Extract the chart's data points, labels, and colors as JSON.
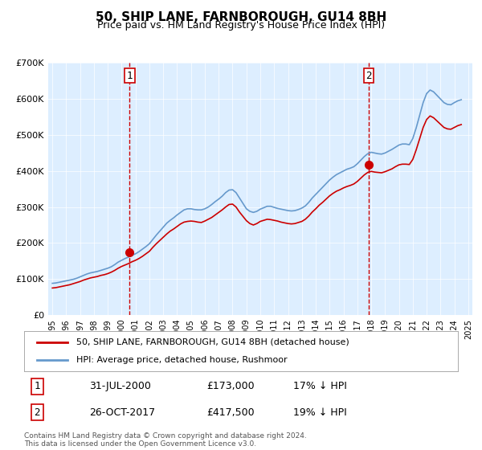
{
  "title": "50, SHIP LANE, FARNBOROUGH, GU14 8BH",
  "subtitle": "Price paid vs. HM Land Registry's House Price Index (HPI)",
  "legend_line1": "50, SHIP LANE, FARNBOROUGH, GU14 8BH (detached house)",
  "legend_line2": "HPI: Average price, detached house, Rushmoor",
  "annotation1_label": "1",
  "annotation1_date": "31-JUL-2000",
  "annotation1_price": "£173,000",
  "annotation1_hpi": "17% ↓ HPI",
  "annotation2_label": "2",
  "annotation2_date": "26-OCT-2017",
  "annotation2_price": "£417,500",
  "annotation2_hpi": "19% ↓ HPI",
  "footnote1": "Contains HM Land Registry data © Crown copyright and database right 2024.",
  "footnote2": "This data is licensed under the Open Government Licence v3.0.",
  "red_color": "#cc0000",
  "blue_color": "#6699cc",
  "bg_color": "#ddeeff",
  "plot_bg": "#ddeeff",
  "annotation_line_color": "#cc0000",
  "ylim": [
    0,
    700000
  ],
  "yticks": [
    0,
    100000,
    200000,
    300000,
    400000,
    500000,
    600000,
    700000
  ],
  "ytick_labels": [
    "£0",
    "£100K",
    "£200K",
    "£300K",
    "£400K",
    "£500K",
    "£600K",
    "£700K"
  ],
  "sale1_year": 2000.58,
  "sale1_value": 173000,
  "sale2_year": 2017.82,
  "sale2_value": 417500,
  "hpi_years": [
    1995,
    1995.25,
    1995.5,
    1995.75,
    1996,
    1996.25,
    1996.5,
    1996.75,
    1997,
    1997.25,
    1997.5,
    1997.75,
    1998,
    1998.25,
    1998.5,
    1998.75,
    1999,
    1999.25,
    1999.5,
    1999.75,
    2000,
    2000.25,
    2000.5,
    2000.75,
    2001,
    2001.25,
    2001.5,
    2001.75,
    2002,
    2002.25,
    2002.5,
    2002.75,
    2003,
    2003.25,
    2003.5,
    2003.75,
    2004,
    2004.25,
    2004.5,
    2004.75,
    2005,
    2005.25,
    2005.5,
    2005.75,
    2006,
    2006.25,
    2006.5,
    2006.75,
    2007,
    2007.25,
    2007.5,
    2007.75,
    2008,
    2008.25,
    2008.5,
    2008.75,
    2009,
    2009.25,
    2009.5,
    2009.75,
    2010,
    2010.25,
    2010.5,
    2010.75,
    2011,
    2011.25,
    2011.5,
    2011.75,
    2012,
    2012.25,
    2012.5,
    2012.75,
    2013,
    2013.25,
    2013.5,
    2013.75,
    2014,
    2014.25,
    2014.5,
    2014.75,
    2015,
    2015.25,
    2015.5,
    2015.75,
    2016,
    2016.25,
    2016.5,
    2016.75,
    2017,
    2017.25,
    2017.5,
    2017.75,
    2018,
    2018.25,
    2018.5,
    2018.75,
    2019,
    2019.25,
    2019.5,
    2019.75,
    2020,
    2020.25,
    2020.5,
    2020.75,
    2021,
    2021.25,
    2021.5,
    2021.75,
    2022,
    2022.25,
    2022.5,
    2022.75,
    2023,
    2023.25,
    2023.5,
    2023.75,
    2024,
    2024.25,
    2024.5
  ],
  "hpi_values": [
    88000,
    89000,
    91000,
    93000,
    95000,
    97000,
    99000,
    102000,
    106000,
    110000,
    114000,
    117000,
    119000,
    121000,
    124000,
    127000,
    130000,
    134000,
    140000,
    147000,
    152000,
    157000,
    161000,
    166000,
    170000,
    176000,
    183000,
    190000,
    198000,
    210000,
    222000,
    233000,
    244000,
    255000,
    263000,
    270000,
    278000,
    285000,
    292000,
    295000,
    295000,
    293000,
    292000,
    292000,
    295000,
    300000,
    307000,
    315000,
    322000,
    330000,
    340000,
    347000,
    348000,
    340000,
    325000,
    310000,
    295000,
    288000,
    285000,
    288000,
    294000,
    298000,
    302000,
    302000,
    299000,
    296000,
    294000,
    292000,
    290000,
    289000,
    290000,
    293000,
    297000,
    303000,
    313000,
    325000,
    335000,
    345000,
    355000,
    365000,
    375000,
    383000,
    390000,
    395000,
    400000,
    405000,
    408000,
    412000,
    420000,
    430000,
    440000,
    448000,
    452000,
    450000,
    448000,
    447000,
    450000,
    455000,
    460000,
    466000,
    472000,
    475000,
    475000,
    473000,
    490000,
    520000,
    555000,
    590000,
    615000,
    625000,
    620000,
    610000,
    600000,
    590000,
    585000,
    584000,
    590000,
    595000,
    598000
  ],
  "red_years": [
    1995,
    1995.25,
    1995.5,
    1995.75,
    1996,
    1996.25,
    1996.5,
    1996.75,
    1997,
    1997.25,
    1997.5,
    1997.75,
    1998,
    1998.25,
    1998.5,
    1998.75,
    1999,
    1999.25,
    1999.5,
    1999.75,
    2000,
    2000.25,
    2000.5,
    2000.75,
    2001,
    2001.25,
    2001.5,
    2001.75,
    2002,
    2002.25,
    2002.5,
    2002.75,
    2003,
    2003.25,
    2003.5,
    2003.75,
    2004,
    2004.25,
    2004.5,
    2004.75,
    2005,
    2005.25,
    2005.5,
    2005.75,
    2006,
    2006.25,
    2006.5,
    2006.75,
    2007,
    2007.25,
    2007.5,
    2007.75,
    2008,
    2008.25,
    2008.5,
    2008.75,
    2009,
    2009.25,
    2009.5,
    2009.75,
    2010,
    2010.25,
    2010.5,
    2010.75,
    2011,
    2011.25,
    2011.5,
    2011.75,
    2012,
    2012.25,
    2012.5,
    2012.75,
    2013,
    2013.25,
    2013.5,
    2013.75,
    2014,
    2014.25,
    2014.5,
    2014.75,
    2015,
    2015.25,
    2015.5,
    2015.75,
    2016,
    2016.25,
    2016.5,
    2016.75,
    2017,
    2017.25,
    2017.5,
    2017.75,
    2018,
    2018.25,
    2018.5,
    2018.75,
    2019,
    2019.25,
    2019.5,
    2019.75,
    2020,
    2020.25,
    2020.5,
    2020.75,
    2021,
    2021.25,
    2021.5,
    2021.75,
    2022,
    2022.25,
    2022.5,
    2022.75,
    2023,
    2023.25,
    2023.5,
    2023.75,
    2024,
    2024.25,
    2024.5
  ],
  "red_values": [
    75000,
    76000,
    78000,
    80000,
    82000,
    84000,
    87000,
    90000,
    93000,
    97000,
    100000,
    103000,
    105000,
    107000,
    110000,
    112000,
    115000,
    119000,
    124000,
    130000,
    135000,
    139000,
    143000,
    148000,
    152000,
    157000,
    163000,
    170000,
    177000,
    188000,
    198000,
    207000,
    216000,
    225000,
    233000,
    239000,
    246000,
    253000,
    258000,
    260000,
    261000,
    260000,
    258000,
    257000,
    261000,
    266000,
    271000,
    278000,
    285000,
    292000,
    300000,
    307000,
    308000,
    300000,
    286000,
    274000,
    262000,
    254000,
    250000,
    254000,
    260000,
    263000,
    266000,
    265000,
    263000,
    261000,
    258000,
    256000,
    254000,
    253000,
    254000,
    257000,
    260000,
    266000,
    275000,
    286000,
    295000,
    305000,
    313000,
    322000,
    331000,
    338000,
    344000,
    348000,
    353000,
    357000,
    360000,
    364000,
    371000,
    380000,
    389000,
    396000,
    399000,
    397000,
    396000,
    395000,
    398000,
    402000,
    406000,
    412000,
    417000,
    419000,
    419000,
    418000,
    432000,
    459000,
    490000,
    521000,
    543000,
    553000,
    548000,
    539000,
    530000,
    521000,
    517000,
    516000,
    521000,
    526000,
    529000
  ]
}
